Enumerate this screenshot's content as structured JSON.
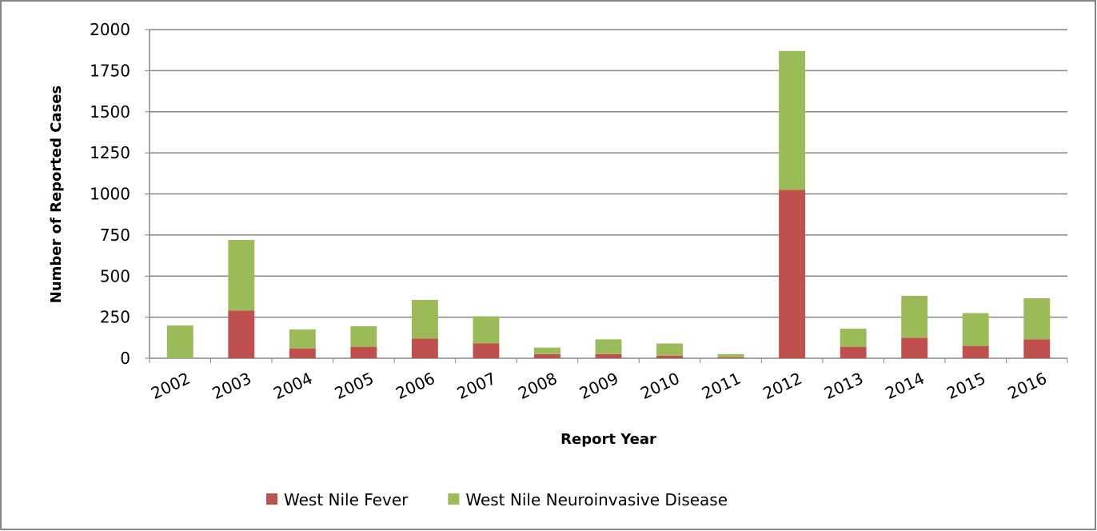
{
  "chart_data": {
    "type": "stacked_bar",
    "xlabel": "Report Year",
    "ylabel": "Number of Reported Cases",
    "categories": [
      "2002",
      "2003",
      "2004",
      "2005",
      "2006",
      "2007",
      "2008",
      "2009",
      "2010",
      "2011",
      "2012",
      "2013",
      "2014",
      "2015",
      "2016"
    ],
    "series": [
      {
        "name": "West Nile Fever",
        "color": "#c0504d",
        "values": [
          0,
          290,
          60,
          70,
          120,
          90,
          25,
          25,
          15,
          5,
          1025,
          70,
          125,
          75,
          115
        ]
      },
      {
        "name": "West Nile Neuroinvasive Disease",
        "color": "#9bbb59",
        "values": [
          200,
          430,
          115,
          125,
          235,
          165,
          40,
          90,
          75,
          20,
          845,
          110,
          255,
          200,
          250
        ]
      }
    ],
    "ylim": [
      0,
      2000
    ],
    "yticks": [
      0,
      250,
      500,
      750,
      1000,
      1250,
      1500,
      1750,
      2000
    ],
    "grid": true,
    "legend": "bottom"
  }
}
